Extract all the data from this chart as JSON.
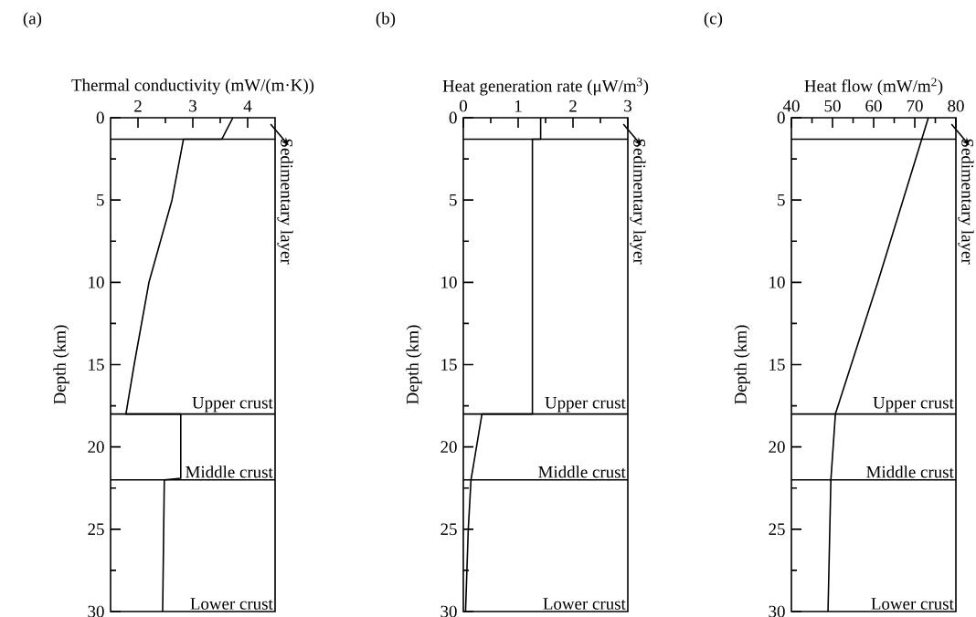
{
  "chart_data": [
    {
      "type": "line",
      "title": "(a)",
      "xlabel": "Thermal conductivity (mW/(m·K))",
      "ylabel": "Depth (km)",
      "color": "#000000",
      "marker": "none",
      "line_style": "solid",
      "grid": false,
      "x": [
        3.73,
        3.53,
        2.83,
        2.62,
        2.2,
        1.93,
        1.78,
        2.78,
        2.78,
        2.48,
        2.45
      ],
      "values": [
        0,
        1.3,
        1.3,
        5,
        10,
        15,
        18,
        18,
        21.9,
        22,
        30
      ],
      "xlim": [
        1.5,
        4.5
      ],
      "xticks": [
        2,
        3,
        4
      ],
      "ylim": [
        30,
        0
      ],
      "yticks": [
        0,
        5,
        10,
        15,
        20,
        25,
        30
      ],
      "ref_lines": [
        {
          "axis": "y",
          "value": 1.3
        },
        {
          "axis": "y",
          "value": 18
        },
        {
          "axis": "y",
          "value": 22
        }
      ],
      "annotations": [
        "Sedimentary layer",
        "Upper crust",
        "Middle crust",
        "Lower crust"
      ]
    },
    {
      "type": "line",
      "title": "(b)",
      "xlabel": "Heat generation rate (μW/m$^{3}$)",
      "ylabel": "Depth (km)",
      "color": "#000000",
      "marker": "none",
      "line_style": "solid",
      "grid": false,
      "x": [
        1.41,
        1.41,
        1.26,
        1.26,
        0.34,
        0.14,
        0.09,
        0.04
      ],
      "values": [
        0,
        1.3,
        1.3,
        18,
        18,
        22,
        25,
        30
      ],
      "xlim": [
        0,
        3
      ],
      "xticks": [
        0,
        1,
        2,
        3
      ],
      "ylim": [
        30,
        0
      ],
      "yticks": [
        0,
        5,
        10,
        15,
        20,
        25,
        30
      ],
      "ref_lines": [
        {
          "axis": "y",
          "value": 1.3
        },
        {
          "axis": "y",
          "value": 18
        },
        {
          "axis": "y",
          "value": 22
        }
      ],
      "annotations": [
        "Sedimentary layer",
        "Upper crust",
        "Middle crust",
        "Lower crust"
      ]
    },
    {
      "type": "line",
      "title": "(c)",
      "xlabel": "Heat flow (mW/m$^{2}$)",
      "ylabel": "Depth (km)",
      "color": "#000000",
      "marker": "none",
      "line_style": "solid",
      "grid": false,
      "x": [
        73.3,
        61,
        50.7,
        49.6,
        48.9
      ],
      "values": [
        0,
        10,
        18,
        22,
        30
      ],
      "xlim": [
        40,
        80
      ],
      "xticks": [
        40,
        50,
        60,
        70,
        80
      ],
      "ylim": [
        30,
        0
      ],
      "yticks": [
        0,
        5,
        10,
        15,
        20,
        25,
        30
      ],
      "ref_lines": [
        {
          "axis": "y",
          "value": 1.3
        },
        {
          "axis": "y",
          "value": 18
        },
        {
          "axis": "y",
          "value": 22
        }
      ],
      "annotations": [
        "Sedimentary layer",
        "Upper crust",
        "Middle crust",
        "Lower crust"
      ]
    }
  ]
}
